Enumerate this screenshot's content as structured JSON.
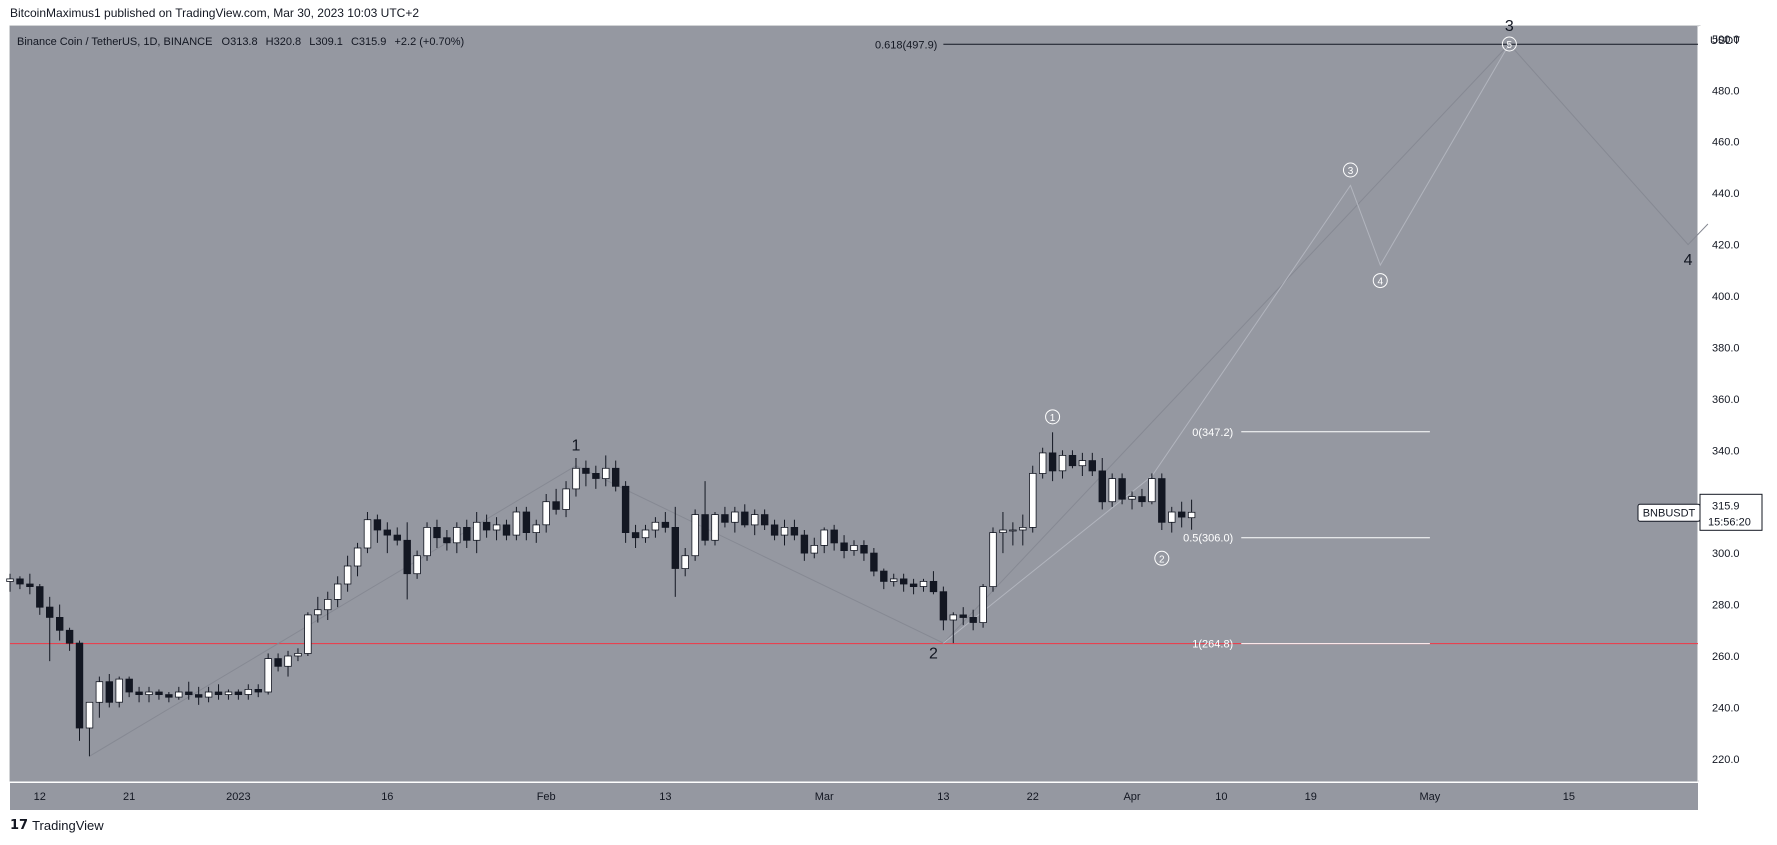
{
  "header": {
    "published_caption": "BitcoinMaximus1 published on TradingView.com, Mar 30, 2023 10:03 UTC+2"
  },
  "footer": {
    "logo_text": "TradingView",
    "logo_mark": "17"
  },
  "colors": {
    "plot_bg": "#9598a1",
    "bull_body": "#ffffff",
    "bear_body": "#131722",
    "wick": "#131722",
    "support_line": "#f23645",
    "fib_line": "#ffffff",
    "wave_line": "#868993",
    "top_line": "#131722"
  },
  "chart_data": {
    "type": "candlestick",
    "legend": "Binance Coin / TetherUS, 1D, BINANCE",
    "ohlc_labels": {
      "o": "O",
      "o_val": "313.8",
      "h": "H",
      "h_val": "320.8",
      "l": "L",
      "l_val": "309.1",
      "c": "C",
      "c_val": "315.9",
      "chg": "+2.2 (+0.70%)"
    },
    "currency": "USDT",
    "symbol_tag": "BNBUSDT",
    "last_price": "315.9",
    "countdown": "15:56:20",
    "last_value": 315.9,
    "ylim": [
      211,
      505
    ],
    "y_ticks": [
      220,
      240,
      260,
      280,
      300,
      320,
      340,
      360,
      380,
      400,
      420,
      440,
      460,
      480,
      500
    ],
    "y_tick_labels": [
      "220.0",
      "240.0",
      "260.0",
      "280.0",
      "300.0",
      "320.0",
      "340.0",
      "360.0",
      "380.0",
      "400.0",
      "420.0",
      "440.0",
      "460.0",
      "480.0",
      "500.0"
    ],
    "x_ticks": [
      {
        "date": "2022-12-12",
        "label": "12"
      },
      {
        "date": "2022-12-21",
        "label": "21"
      },
      {
        "date": "2023-01-01",
        "label": "2023"
      },
      {
        "date": "2023-01-16",
        "label": "16"
      },
      {
        "date": "2023-02-01",
        "label": "Feb"
      },
      {
        "date": "2023-02-13",
        "label": "13"
      },
      {
        "date": "2023-03-01",
        "label": "Mar"
      },
      {
        "date": "2023-03-13",
        "label": "13"
      },
      {
        "date": "2023-03-22",
        "label": "22"
      },
      {
        "date": "2023-04-01",
        "label": "Apr"
      },
      {
        "date": "2023-04-10",
        "label": "10"
      },
      {
        "date": "2023-04-19",
        "label": "19"
      },
      {
        "date": "2023-05-01",
        "label": "May"
      },
      {
        "date": "2023-05-15",
        "label": "15"
      }
    ],
    "x_range": [
      "2022-12-09",
      "2023-05-28"
    ],
    "candles": [
      {
        "d": "2022-12-09",
        "o": 289,
        "h": 292,
        "l": 285,
        "c": 290
      },
      {
        "d": "2022-12-10",
        "o": 290,
        "h": 291,
        "l": 286,
        "c": 288
      },
      {
        "d": "2022-12-11",
        "o": 288,
        "h": 292,
        "l": 284,
        "c": 287
      },
      {
        "d": "2022-12-12",
        "o": 287,
        "h": 288,
        "l": 276,
        "c": 279
      },
      {
        "d": "2022-12-13",
        "o": 279,
        "h": 283,
        "l": 258,
        "c": 275
      },
      {
        "d": "2022-12-14",
        "o": 275,
        "h": 280,
        "l": 266,
        "c": 270
      },
      {
        "d": "2022-12-15",
        "o": 270,
        "h": 271,
        "l": 262,
        "c": 265
      },
      {
        "d": "2022-12-16",
        "o": 265,
        "h": 266,
        "l": 227,
        "c": 232
      },
      {
        "d": "2022-12-17",
        "o": 232,
        "h": 240,
        "l": 221,
        "c": 242
      },
      {
        "d": "2022-12-18",
        "o": 242,
        "h": 252,
        "l": 236,
        "c": 250
      },
      {
        "d": "2022-12-19",
        "o": 250,
        "h": 253,
        "l": 240,
        "c": 242
      },
      {
        "d": "2022-12-20",
        "o": 242,
        "h": 252,
        "l": 240,
        "c": 251
      },
      {
        "d": "2022-12-21",
        "o": 251,
        "h": 252,
        "l": 244,
        "c": 246
      },
      {
        "d": "2022-12-22",
        "o": 246,
        "h": 248,
        "l": 242,
        "c": 245
      },
      {
        "d": "2022-12-23",
        "o": 245,
        "h": 248,
        "l": 242,
        "c": 246
      },
      {
        "d": "2022-12-24",
        "o": 246,
        "h": 247,
        "l": 243,
        "c": 245
      },
      {
        "d": "2022-12-25",
        "o": 245,
        "h": 246,
        "l": 242,
        "c": 244
      },
      {
        "d": "2022-12-26",
        "o": 244,
        "h": 248,
        "l": 243,
        "c": 246
      },
      {
        "d": "2022-12-27",
        "o": 246,
        "h": 250,
        "l": 243,
        "c": 245
      },
      {
        "d": "2022-12-28",
        "o": 245,
        "h": 248,
        "l": 241,
        "c": 244
      },
      {
        "d": "2022-12-29",
        "o": 244,
        "h": 248,
        "l": 242,
        "c": 246
      },
      {
        "d": "2022-12-30",
        "o": 246,
        "h": 249,
        "l": 243,
        "c": 245
      },
      {
        "d": "2022-12-31",
        "o": 245,
        "h": 247,
        "l": 243,
        "c": 246
      },
      {
        "d": "2023-01-01",
        "o": 246,
        "h": 247,
        "l": 243,
        "c": 245
      },
      {
        "d": "2023-01-02",
        "o": 245,
        "h": 249,
        "l": 243,
        "c": 247
      },
      {
        "d": "2023-01-03",
        "o": 247,
        "h": 249,
        "l": 244,
        "c": 246
      },
      {
        "d": "2023-01-04",
        "o": 246,
        "h": 261,
        "l": 245,
        "c": 259
      },
      {
        "d": "2023-01-05",
        "o": 259,
        "h": 261,
        "l": 254,
        "c": 256
      },
      {
        "d": "2023-01-06",
        "o": 256,
        "h": 262,
        "l": 252,
        "c": 260
      },
      {
        "d": "2023-01-07",
        "o": 260,
        "h": 263,
        "l": 258,
        "c": 261
      },
      {
        "d": "2023-01-08",
        "o": 261,
        "h": 277,
        "l": 260,
        "c": 276
      },
      {
        "d": "2023-01-09",
        "o": 276,
        "h": 283,
        "l": 273,
        "c": 278
      },
      {
        "d": "2023-01-10",
        "o": 278,
        "h": 285,
        "l": 274,
        "c": 282
      },
      {
        "d": "2023-01-11",
        "o": 282,
        "h": 291,
        "l": 279,
        "c": 288
      },
      {
        "d": "2023-01-12",
        "o": 288,
        "h": 299,
        "l": 285,
        "c": 295
      },
      {
        "d": "2023-01-13",
        "o": 295,
        "h": 304,
        "l": 291,
        "c": 302
      },
      {
        "d": "2023-01-14",
        "o": 302,
        "h": 316,
        "l": 300,
        "c": 313
      },
      {
        "d": "2023-01-15",
        "o": 313,
        "h": 315,
        "l": 304,
        "c": 309
      },
      {
        "d": "2023-01-16",
        "o": 309,
        "h": 312,
        "l": 300,
        "c": 307
      },
      {
        "d": "2023-01-17",
        "o": 307,
        "h": 310,
        "l": 303,
        "c": 305
      },
      {
        "d": "2023-01-18",
        "o": 305,
        "h": 312,
        "l": 282,
        "c": 292
      },
      {
        "d": "2023-01-19",
        "o": 292,
        "h": 301,
        "l": 290,
        "c": 299
      },
      {
        "d": "2023-01-20",
        "o": 299,
        "h": 312,
        "l": 297,
        "c": 310
      },
      {
        "d": "2023-01-21",
        "o": 310,
        "h": 313,
        "l": 302,
        "c": 306
      },
      {
        "d": "2023-01-22",
        "o": 306,
        "h": 309,
        "l": 301,
        "c": 304
      },
      {
        "d": "2023-01-23",
        "o": 304,
        "h": 312,
        "l": 300,
        "c": 310
      },
      {
        "d": "2023-01-24",
        "o": 310,
        "h": 313,
        "l": 302,
        "c": 305
      },
      {
        "d": "2023-01-25",
        "o": 305,
        "h": 316,
        "l": 300,
        "c": 312
      },
      {
        "d": "2023-01-26",
        "o": 312,
        "h": 315,
        "l": 306,
        "c": 309
      },
      {
        "d": "2023-01-27",
        "o": 309,
        "h": 314,
        "l": 305,
        "c": 311
      },
      {
        "d": "2023-01-28",
        "o": 311,
        "h": 313,
        "l": 305,
        "c": 307
      },
      {
        "d": "2023-01-29",
        "o": 307,
        "h": 318,
        "l": 305,
        "c": 316
      },
      {
        "d": "2023-01-30",
        "o": 316,
        "h": 318,
        "l": 305,
        "c": 308
      },
      {
        "d": "2023-01-31",
        "o": 308,
        "h": 313,
        "l": 304,
        "c": 311
      },
      {
        "d": "2023-02-01",
        "o": 311,
        "h": 323,
        "l": 308,
        "c": 320
      },
      {
        "d": "2023-02-02",
        "o": 320,
        "h": 325,
        "l": 315,
        "c": 317
      },
      {
        "d": "2023-02-03",
        "o": 317,
        "h": 328,
        "l": 314,
        "c": 325
      },
      {
        "d": "2023-02-04",
        "o": 325,
        "h": 337,
        "l": 322,
        "c": 333
      },
      {
        "d": "2023-02-05",
        "o": 333,
        "h": 336,
        "l": 326,
        "c": 331
      },
      {
        "d": "2023-02-06",
        "o": 331,
        "h": 334,
        "l": 325,
        "c": 329
      },
      {
        "d": "2023-02-07",
        "o": 329,
        "h": 338,
        "l": 326,
        "c": 333
      },
      {
        "d": "2023-02-08",
        "o": 333,
        "h": 336,
        "l": 324,
        "c": 326
      },
      {
        "d": "2023-02-09",
        "o": 326,
        "h": 328,
        "l": 304,
        "c": 308
      },
      {
        "d": "2023-02-10",
        "o": 308,
        "h": 311,
        "l": 302,
        "c": 306
      },
      {
        "d": "2023-02-11",
        "o": 306,
        "h": 311,
        "l": 304,
        "c": 309
      },
      {
        "d": "2023-02-12",
        "o": 309,
        "h": 314,
        "l": 306,
        "c": 312
      },
      {
        "d": "2023-02-13",
        "o": 312,
        "h": 316,
        "l": 308,
        "c": 310
      },
      {
        "d": "2023-02-14",
        "o": 310,
        "h": 318,
        "l": 283,
        "c": 294
      },
      {
        "d": "2023-02-15",
        "o": 294,
        "h": 302,
        "l": 291,
        "c": 299
      },
      {
        "d": "2023-02-16",
        "o": 299,
        "h": 317,
        "l": 297,
        "c": 315
      },
      {
        "d": "2023-02-17",
        "o": 315,
        "h": 328,
        "l": 303,
        "c": 305
      },
      {
        "d": "2023-02-18",
        "o": 305,
        "h": 316,
        "l": 303,
        "c": 315
      },
      {
        "d": "2023-02-19",
        "o": 315,
        "h": 318,
        "l": 310,
        "c": 312
      },
      {
        "d": "2023-02-20",
        "o": 312,
        "h": 318,
        "l": 308,
        "c": 316
      },
      {
        "d": "2023-02-21",
        "o": 316,
        "h": 319,
        "l": 310,
        "c": 311
      },
      {
        "d": "2023-02-22",
        "o": 311,
        "h": 317,
        "l": 307,
        "c": 315
      },
      {
        "d": "2023-02-23",
        "o": 315,
        "h": 317,
        "l": 309,
        "c": 311
      },
      {
        "d": "2023-02-24",
        "o": 311,
        "h": 313,
        "l": 305,
        "c": 307
      },
      {
        "d": "2023-02-25",
        "o": 307,
        "h": 313,
        "l": 303,
        "c": 310
      },
      {
        "d": "2023-02-26",
        "o": 310,
        "h": 313,
        "l": 305,
        "c": 307
      },
      {
        "d": "2023-02-27",
        "o": 307,
        "h": 309,
        "l": 297,
        "c": 300
      },
      {
        "d": "2023-02-28",
        "o": 300,
        "h": 306,
        "l": 298,
        "c": 303
      },
      {
        "d": "2023-03-01",
        "o": 303,
        "h": 310,
        "l": 300,
        "c": 309
      },
      {
        "d": "2023-03-02",
        "o": 309,
        "h": 311,
        "l": 301,
        "c": 304
      },
      {
        "d": "2023-03-03",
        "o": 304,
        "h": 307,
        "l": 298,
        "c": 301
      },
      {
        "d": "2023-03-04",
        "o": 301,
        "h": 305,
        "l": 299,
        "c": 303
      },
      {
        "d": "2023-03-05",
        "o": 303,
        "h": 305,
        "l": 297,
        "c": 300
      },
      {
        "d": "2023-03-06",
        "o": 300,
        "h": 302,
        "l": 291,
        "c": 293
      },
      {
        "d": "2023-03-07",
        "o": 293,
        "h": 294,
        "l": 286,
        "c": 289
      },
      {
        "d": "2023-03-08",
        "o": 289,
        "h": 292,
        "l": 287,
        "c": 290
      },
      {
        "d": "2023-03-09",
        "o": 290,
        "h": 292,
        "l": 285,
        "c": 288
      },
      {
        "d": "2023-03-10",
        "o": 288,
        "h": 290,
        "l": 284,
        "c": 287
      },
      {
        "d": "2023-03-11",
        "o": 287,
        "h": 290,
        "l": 285,
        "c": 289
      },
      {
        "d": "2023-03-12",
        "o": 289,
        "h": 293,
        "l": 284,
        "c": 285
      },
      {
        "d": "2023-03-13",
        "o": 285,
        "h": 287,
        "l": 270,
        "c": 274
      },
      {
        "d": "2023-03-14",
        "o": 274,
        "h": 277,
        "l": 265,
        "c": 276
      },
      {
        "d": "2023-03-15",
        "o": 276,
        "h": 279,
        "l": 272,
        "c": 275
      },
      {
        "d": "2023-03-16",
        "o": 275,
        "h": 278,
        "l": 270,
        "c": 273
      },
      {
        "d": "2023-03-17",
        "o": 273,
        "h": 288,
        "l": 271,
        "c": 287
      },
      {
        "d": "2023-03-18",
        "o": 287,
        "h": 310,
        "l": 285,
        "c": 308
      },
      {
        "d": "2023-03-19",
        "o": 308,
        "h": 316,
        "l": 300,
        "c": 309
      },
      {
        "d": "2023-03-20",
        "o": 309,
        "h": 312,
        "l": 303,
        "c": 309
      },
      {
        "d": "2023-03-21",
        "o": 309,
        "h": 315,
        "l": 303,
        "c": 310
      },
      {
        "d": "2023-03-22",
        "o": 310,
        "h": 334,
        "l": 308,
        "c": 331
      },
      {
        "d": "2023-03-23",
        "o": 331,
        "h": 341,
        "l": 329,
        "c": 339
      },
      {
        "d": "2023-03-24",
        "o": 339,
        "h": 347,
        "l": 328,
        "c": 332
      },
      {
        "d": "2023-03-25",
        "o": 332,
        "h": 340,
        "l": 329,
        "c": 338
      },
      {
        "d": "2023-03-26",
        "o": 338,
        "h": 340,
        "l": 333,
        "c": 334
      },
      {
        "d": "2023-03-27",
        "o": 334,
        "h": 339,
        "l": 330,
        "c": 336
      },
      {
        "d": "2023-03-28",
        "o": 336,
        "h": 339,
        "l": 330,
        "c": 332
      },
      {
        "d": "2023-03-29",
        "o": 332,
        "h": 337,
        "l": 317,
        "c": 320
      },
      {
        "d": "2023-03-30",
        "o": 320,
        "h": 331,
        "l": 318,
        "c": 329
      },
      {
        "d": "2023-03-31",
        "o": 329,
        "h": 331,
        "l": 319,
        "c": 321
      },
      {
        "d": "2023-04-01",
        "o": 321,
        "h": 324,
        "l": 317,
        "c": 322
      },
      {
        "d": "2023-04-02",
        "o": 322,
        "h": 325,
        "l": 318,
        "c": 320
      },
      {
        "d": "2023-04-03",
        "o": 320,
        "h": 331,
        "l": 319,
        "c": 329
      },
      {
        "d": "2023-04-04",
        "o": 329,
        "h": 331,
        "l": 309,
        "c": 312
      },
      {
        "d": "2023-04-05",
        "o": 312,
        "h": 318,
        "l": 308,
        "c": 316
      },
      {
        "d": "2023-04-06",
        "o": 316,
        "h": 320,
        "l": 310,
        "c": 314
      },
      {
        "d": "2023-04-07",
        "o": 313.8,
        "h": 320.8,
        "l": 309.1,
        "c": 315.9
      }
    ],
    "horizontal_lines": [
      {
        "name": "support",
        "value": 264.8,
        "color": "#f23645"
      },
      {
        "name": "fib-top",
        "value": 497.9,
        "color": "#131722",
        "label": "0.618(497.9)",
        "from": "2023-03-13"
      }
    ],
    "fib_levels": [
      {
        "label": "0(347.2)",
        "value": 347.2
      },
      {
        "label": "0.5(306.0)",
        "value": 306.0
      },
      {
        "label": "1(264.8)",
        "value": 264.8
      }
    ],
    "fib_range": [
      "2023-04-12",
      "2023-05-01"
    ],
    "wave_path_major": [
      {
        "d": "2022-12-17",
        "v": 221
      },
      {
        "d": "2023-02-04",
        "v": 334
      },
      {
        "d": "2023-03-13",
        "v": 265
      },
      {
        "d": "2023-05-09",
        "v": 498
      },
      {
        "d": "2023-05-27",
        "v": 420
      },
      {
        "d": "2023-05-29",
        "v": 428
      }
    ],
    "wave_path_minor": [
      {
        "d": "2023-03-13",
        "v": 265
      },
      {
        "d": "2023-04-03",
        "v": 330
      },
      {
        "d": "2023-04-23",
        "v": 443
      },
      {
        "d": "2023-04-26",
        "v": 412
      },
      {
        "d": "2023-05-09",
        "v": 498
      }
    ],
    "wave_labels_major": [
      {
        "text": "1",
        "d": "2023-02-04",
        "v": 340
      },
      {
        "text": "2",
        "d": "2023-03-12",
        "v": 259
      },
      {
        "text": "3",
        "d": "2023-05-09",
        "v": 503
      },
      {
        "text": "4",
        "d": "2023-05-27",
        "v": 412
      }
    ],
    "wave_labels_minor": [
      {
        "text": "1",
        "d": "2023-03-24",
        "v": 353
      },
      {
        "text": "2",
        "d": "2023-04-04",
        "v": 298
      },
      {
        "text": "3",
        "d": "2023-04-23",
        "v": 449
      },
      {
        "text": "4",
        "d": "2023-04-26",
        "v": 406
      },
      {
        "text": "5",
        "d": "2023-05-09",
        "v": 498
      }
    ]
  }
}
